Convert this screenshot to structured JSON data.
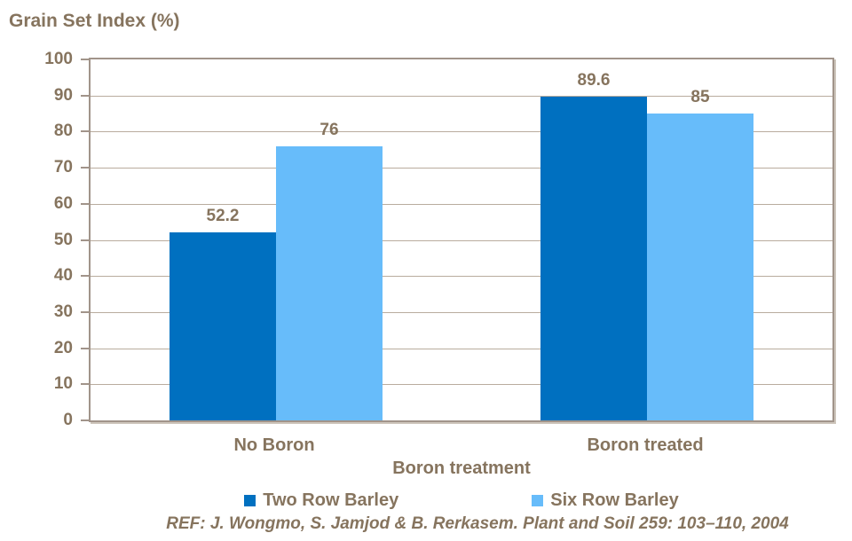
{
  "chart_data": {
    "type": "bar",
    "title": "Grain Set Index (%)",
    "xlabel": "Boron treatment",
    "ylabel": "Grain Set Index (%)",
    "categories": [
      "No Boron",
      "Boron treated"
    ],
    "series": [
      {
        "name": "Two Row Barley",
        "color": "#0070c0",
        "values": [
          52.2,
          89.6
        ],
        "labels": [
          "52.2",
          "89.6"
        ]
      },
      {
        "name": "Six Row Barley",
        "color": "#67bcfa",
        "values": [
          76,
          85
        ],
        "labels": [
          "76",
          "85"
        ]
      }
    ],
    "ylim": [
      0,
      100
    ],
    "yticks": [
      0,
      10,
      20,
      30,
      40,
      50,
      60,
      70,
      80,
      90,
      100
    ],
    "grid": true,
    "legend_position": "bottom"
  },
  "colors": {
    "text": "#86745e",
    "gridline": "#b9ac9e",
    "axis": "#a1948a",
    "series1": "#0070c0",
    "series2": "#67bcfa"
  },
  "reference": "REF: J. Wongmo, S. Jamjod & B. Rerkasem. Plant and Soil 259: 103–110, 2004"
}
